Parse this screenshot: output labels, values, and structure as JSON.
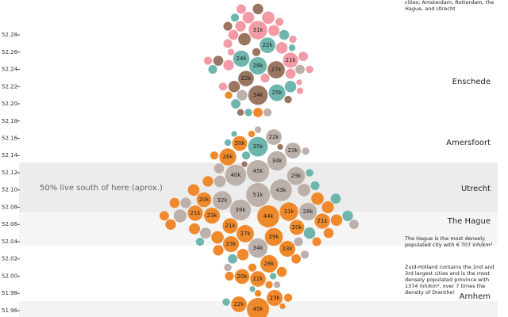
{
  "chart_data": {
    "type": "beeswarm",
    "ylim": [
      51.9526,
      52.3205
    ],
    "yticks": [
      52.28,
      52.26,
      52.24,
      52.22,
      {
        "value": 52.2,
        "label": "52.20"
      },
      52.18,
      52.16,
      52.14,
      52.12,
      {
        "value": 52.1,
        "label": "52.10"
      },
      52.08,
      52.06,
      52.04,
      52.02,
      {
        "value": 52.0,
        "label": "52.00"
      },
      51.98,
      51.96
    ],
    "cities": [
      {
        "name": "Enschede",
        "y": 52.2257
      },
      {
        "name": "Amersfoort",
        "y": 52.155
      },
      {
        "name": "Utrecht",
        "y": 52.1017
      },
      {
        "name": "The Hague",
        "y": 52.0639
      },
      {
        "name": "Arnhem",
        "y": 51.9766
      }
    ],
    "median_label": "50% live south of here (aprox.)",
    "notes": [
      {
        "y": 52.3205,
        "lines": [
          "cities; Amsterdam, Rotterdam, the",
          "Hague, and Utrecht"
        ]
      },
      {
        "y": 52.0464,
        "lines": [
          "The Hague is the most densely",
          "populated city with 6 707 inh/km²"
        ]
      },
      {
        "y": 52.0133,
        "lines": [
          "Zuid-Holland contains the 2nd and",
          "3rd largest cities and is the most",
          "densely populated province with",
          "1374 inh/km², over 7 times the",
          "density of Drenthe!"
        ]
      }
    ],
    "series": [
      {
        "color": "#f29ba6",
        "y": [
          52.2855,
          52.2506,
          52.31,
          52.3,
          52.295,
          52.29,
          52.28,
          52.275,
          52.27,
          52.265,
          52.26,
          52.255,
          52.25,
          52.245,
          52.24,
          52.235,
          52.23,
          52.225,
          52.22,
          52.215,
          52.3,
          52.285
        ],
        "sizes": [
          31,
          21,
          8,
          12,
          6,
          10,
          9,
          5,
          7,
          12,
          4,
          8,
          6,
          10,
          5,
          9,
          7,
          3,
          6,
          4,
          14,
          11
        ],
        "value_labels": [
          "31k",
          "21k",
          null,
          null,
          null,
          null,
          null,
          null,
          null,
          null,
          null,
          null,
          null,
          null,
          null,
          null,
          null,
          null,
          null,
          null,
          null,
          null
        ]
      },
      {
        "color": "#9a7560",
        "y": [
          52.2395,
          52.2294,
          52.2101,
          52.31,
          52.29,
          52.275,
          52.26,
          52.25,
          52.22,
          52.205,
          52.19,
          52.15,
          52.13
        ],
        "sizes": [
          27,
          22,
          34,
          10,
          7,
          14,
          6,
          9,
          12,
          5,
          4,
          3,
          3
        ],
        "value_labels": [
          "27k",
          "22k",
          "34k",
          null,
          null,
          null,
          null,
          null,
          null,
          null,
          null,
          null,
          null
        ]
      },
      {
        "color": "#6db5ad",
        "y": [
          52.268,
          52.2524,
          52.2441,
          52.2129,
          52.1503,
          52.3,
          52.28,
          52.265,
          52.24,
          52.22,
          52.2,
          52.19,
          52.165,
          52.155,
          52.14,
          52.12,
          52.105,
          52.09,
          52.07,
          52.05,
          52.04,
          52.02,
          52.0,
          51.985,
          51.97
        ],
        "sizes": [
          22,
          24,
          28,
          25,
          35,
          6,
          9,
          4,
          7,
          12,
          8,
          5,
          3,
          4,
          6,
          5,
          7,
          9,
          10,
          12,
          6,
          8,
          4,
          3,
          5
        ],
        "value_labels": [
          "22k",
          "24k",
          "28k",
          "25k",
          "35k",
          null,
          null,
          null,
          null,
          null,
          null,
          null,
          null,
          null,
          null,
          null,
          null,
          null,
          null,
          null,
          null,
          null,
          null,
          null,
          null
        ]
      },
      {
        "color": "#bcb0aa",
        "y": [
          52.1614,
          52.1457,
          52.1338,
          52.1163,
          52.1218,
          52.1172,
          52.0998,
          52.0943,
          52.0878,
          52.0749,
          52.0768,
          52.0326,
          52.24,
          52.21,
          52.19,
          52.17,
          52.145,
          52.125,
          52.11,
          52.1,
          52.085,
          52.07,
          52.06,
          52.05,
          52.04,
          52.025,
          52.01,
          51.99
        ],
        "sizes": [
          22,
          23,
          34,
          29,
          45,
          40,
          43,
          51,
          32,
          28,
          39,
          34,
          8,
          10,
          6,
          4,
          5,
          9,
          12,
          14,
          10,
          15,
          8,
          11,
          7,
          6,
          5,
          4
        ],
        "value_labels": [
          "22k",
          "23k",
          "34k",
          "29k",
          "45k",
          "40k",
          "43k",
          "51k",
          "32k",
          "28k",
          "39k",
          "34k",
          null,
          null,
          null,
          null,
          null,
          null,
          null,
          null,
          null,
          null,
          null,
          null,
          null,
          null,
          null,
          null
        ]
      },
      {
        "color": "#f0892b",
        "y": [
          52.154,
          52.1384,
          52.0887,
          52.0749,
          52.0731,
          52.0694,
          52.0703,
          52.0639,
          52.0566,
          52.0584,
          52.0492,
          52.0455,
          52.0372,
          52.0317,
          52.0143,
          51.9968,
          51.9996,
          51.9747,
          51.9674,
          51.9618,
          52.21,
          52.19,
          52.165,
          52.14,
          52.11,
          52.1,
          52.09,
          52.085,
          52.08,
          52.07,
          52.065,
          52.06,
          52.055,
          52.05,
          52.045,
          52.04,
          52.03,
          52.025,
          52.02,
          52.01,
          52.005,
          52.0,
          51.99,
          51.98,
          51.975,
          51.965
        ],
        "sizes": [
          20,
          26,
          20,
          31,
          21,
          44,
          23,
          21,
          20,
          21,
          27,
          29,
          23,
          23,
          28,
          22,
          20,
          23,
          22,
          45,
          5,
          8,
          4,
          6,
          10,
          12,
          14,
          9,
          13,
          8,
          12,
          10,
          11,
          9,
          14,
          7,
          10,
          12,
          8,
          6,
          9,
          7,
          5,
          4,
          6,
          3
        ],
        "value_labels": [
          "20k",
          "26k",
          "20k",
          "31k",
          "21k",
          "44k",
          "23k",
          "21k",
          "20k",
          "21k",
          "27k",
          "29k",
          "23k",
          "23k",
          "28k",
          "22k",
          "20k",
          "23k",
          "22k",
          "45k",
          null,
          null,
          null,
          null,
          null,
          null,
          null,
          null,
          null,
          null,
          null,
          null,
          null,
          null,
          null,
          null,
          null,
          null,
          null,
          null,
          null,
          null,
          null,
          null,
          null,
          null
        ]
      }
    ]
  }
}
